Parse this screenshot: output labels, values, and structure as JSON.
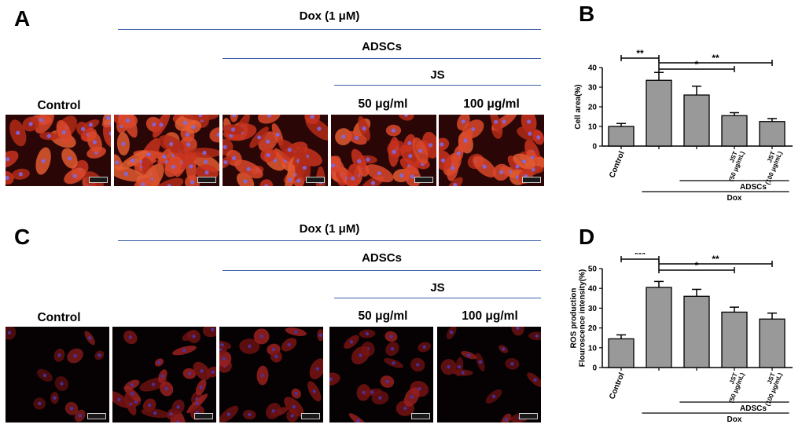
{
  "panels": {
    "A": "A",
    "B": "B",
    "C": "C",
    "D": "D"
  },
  "treatment_headers": {
    "dox": "Dox (1 μM)",
    "adscs": "ADSCs",
    "js": "JS"
  },
  "image_labels": {
    "control": "Control",
    "dose1": "50 μg/ml",
    "dose2": "100 μg/ml"
  },
  "colors": {
    "header_line": "#3c5fa8",
    "bar_fill": "#999999",
    "phalloidin": "#c8321e",
    "ros": "#8a1a1a",
    "nucleus": "#5a4ad0"
  },
  "chart_data": [
    {
      "type": "bar",
      "panel": "B",
      "ylabel": "Cell area(%)",
      "ylim": [
        0,
        40
      ],
      "yticks": [
        0,
        10,
        20,
        30,
        40
      ],
      "categories": [
        "Control",
        "",
        "",
        "JST\n(50 μg/mL)",
        "JST\n(100 μg/mL)"
      ],
      "values": [
        10,
        33.5,
        26,
        15.5,
        12.5
      ],
      "errors": [
        1.5,
        4,
        4.5,
        1.5,
        1.5
      ],
      "brackets": [
        {
          "from": 0,
          "to": 1,
          "label": "**"
        },
        {
          "from": 1,
          "to": 3,
          "label": "*"
        },
        {
          "from": 1,
          "to": 4,
          "label": "**"
        }
      ],
      "group_labels": [
        {
          "text": "ADSCs",
          "from": 2,
          "to": 4
        },
        {
          "text": "Dox",
          "from": 1,
          "to": 4
        }
      ]
    },
    {
      "type": "bar",
      "panel": "D",
      "ylabel": "ROS production\nFlouroscence intensity(%)",
      "ylim": [
        0,
        50
      ],
      "yticks": [
        0,
        10,
        20,
        30,
        40,
        50
      ],
      "categories": [
        "Control",
        "",
        "",
        "JST\n(50 μg/mL)",
        "JST\n(100 μg/mL)"
      ],
      "values": [
        14.5,
        40.5,
        36,
        28,
        24.5
      ],
      "errors": [
        2,
        3,
        3.5,
        2.5,
        3
      ],
      "brackets": [
        {
          "from": 0,
          "to": 1,
          "label": "***"
        },
        {
          "from": 1,
          "to": 3,
          "label": "*"
        },
        {
          "from": 1,
          "to": 4,
          "label": "**"
        }
      ],
      "group_labels": [
        {
          "text": "ADSCs",
          "from": 2,
          "to": 4
        },
        {
          "text": "Dox",
          "from": 1,
          "to": 4
        }
      ]
    }
  ]
}
